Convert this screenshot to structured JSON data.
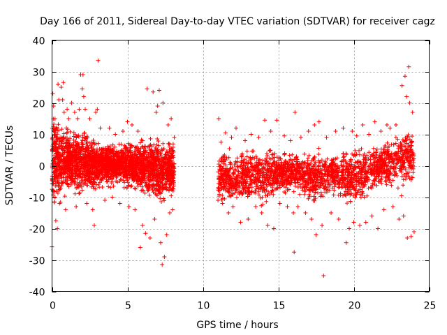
{
  "chart_data": {
    "type": "scatter",
    "title": "Day 166 of 2011, Sidereal Day-to-day VTEC variation (SDTVAR) for receiver cagz",
    "xlabel": "GPS time / hours",
    "ylabel": "SDTVAR / TECUs",
    "xlim": [
      0,
      25
    ],
    "ylim": [
      -40,
      40
    ],
    "xticks": [
      0,
      5,
      10,
      15,
      20,
      25
    ],
    "yticks": [
      -40,
      -30,
      -20,
      -10,
      0,
      10,
      20,
      30,
      40
    ],
    "grid": true,
    "marker": "plus",
    "color": "#ff0000",
    "series": [
      {
        "name": "SDTVAR",
        "points": [
          [
            0.0,
            -25.8
          ],
          [
            0.05,
            23.0
          ],
          [
            0.1,
            19.0
          ],
          [
            0.15,
            -11.5
          ],
          [
            0.2,
            15.0
          ],
          [
            0.25,
            -17.5
          ],
          [
            0.3,
            12.0
          ],
          [
            0.35,
            -20.0
          ],
          [
            0.4,
            26.0
          ],
          [
            0.45,
            21.0
          ],
          [
            0.5,
            -12.0
          ],
          [
            0.6,
            25.0
          ],
          [
            0.7,
            21.0
          ],
          [
            0.75,
            26.5
          ],
          [
            0.8,
            17.0
          ],
          [
            0.9,
            -14.0
          ],
          [
            1.0,
            18.0
          ],
          [
            1.1,
            15.0
          ],
          [
            1.3,
            20.0
          ],
          [
            1.5,
            17.0
          ],
          [
            1.6,
            -13.0
          ],
          [
            1.7,
            15.0
          ],
          [
            1.8,
            18.0
          ],
          [
            1.9,
            29.0
          ],
          [
            2.0,
            24.5
          ],
          [
            2.05,
            29.0
          ],
          [
            2.1,
            22.0
          ],
          [
            2.2,
            18.0
          ],
          [
            2.3,
            -12.0
          ],
          [
            2.5,
            15.0
          ],
          [
            2.7,
            -14.0
          ],
          [
            2.8,
            -19.0
          ],
          [
            2.9,
            17.0
          ],
          [
            3.0,
            18.0
          ],
          [
            3.05,
            33.5
          ],
          [
            3.2,
            12.0
          ],
          [
            3.5,
            -11.0
          ],
          [
            3.8,
            12.0
          ],
          [
            4.0,
            -10.0
          ],
          [
            4.2,
            10.0
          ],
          [
            4.5,
            -12.0
          ],
          [
            4.7,
            11.0
          ],
          [
            5.0,
            14.0
          ],
          [
            5.1,
            -13.0
          ],
          [
            5.3,
            13.0
          ],
          [
            5.5,
            -14.0
          ],
          [
            5.7,
            11.0
          ],
          [
            5.85,
            -26.0
          ],
          [
            6.0,
            -19.0
          ],
          [
            6.2,
            -21.5
          ],
          [
            6.3,
            24.5
          ],
          [
            6.5,
            -23.0
          ],
          [
            6.7,
            23.5
          ],
          [
            6.8,
            -17.0
          ],
          [
            6.9,
            17.0
          ],
          [
            7.0,
            19.0
          ],
          [
            7.1,
            24.0
          ],
          [
            7.2,
            -24.5
          ],
          [
            7.3,
            -31.5
          ],
          [
            7.35,
            20.0
          ],
          [
            7.45,
            -29.0
          ],
          [
            7.6,
            -22.0
          ],
          [
            7.7,
            13.0
          ],
          [
            7.8,
            -15.0
          ],
          [
            7.9,
            15.0
          ],
          [
            8.0,
            -14.0
          ],
          [
            8.1,
            9.0
          ],
          [
            11.0,
            -11.0
          ],
          [
            11.05,
            15.0
          ],
          [
            11.2,
            7.5
          ],
          [
            11.3,
            -12.0
          ],
          [
            11.5,
            10.5
          ],
          [
            11.7,
            -15.0
          ],
          [
            11.9,
            9.0
          ],
          [
            12.0,
            -13.0
          ],
          [
            12.2,
            12.0
          ],
          [
            12.5,
            -18.0
          ],
          [
            12.8,
            8.0
          ],
          [
            13.0,
            -17.0
          ],
          [
            13.2,
            10.0
          ],
          [
            13.5,
            -13.0
          ],
          [
            13.7,
            9.0
          ],
          [
            13.9,
            -15.0
          ],
          [
            14.1,
            14.5
          ],
          [
            14.3,
            -19.0
          ],
          [
            14.5,
            11.0
          ],
          [
            14.7,
            -20.0
          ],
          [
            14.9,
            14.5
          ],
          [
            15.1,
            -12.0
          ],
          [
            15.4,
            9.5
          ],
          [
            15.6,
            -13.0
          ],
          [
            15.8,
            8.0
          ],
          [
            16.0,
            -15.0
          ],
          [
            16.05,
            -27.5
          ],
          [
            16.1,
            17.0
          ],
          [
            16.3,
            -13.0
          ],
          [
            16.5,
            9.0
          ],
          [
            16.8,
            -15.0
          ],
          [
            17.0,
            11.0
          ],
          [
            17.2,
            -17.0
          ],
          [
            17.4,
            13.0
          ],
          [
            17.5,
            -22.0
          ],
          [
            17.7,
            14.0
          ],
          [
            17.9,
            -19.0
          ],
          [
            18.0,
            -35.0
          ],
          [
            18.2,
            9.0
          ],
          [
            18.5,
            -15.0
          ],
          [
            18.8,
            11.0
          ],
          [
            19.0,
            -17.0
          ],
          [
            19.3,
            12.0
          ],
          [
            19.5,
            -24.5
          ],
          [
            19.7,
            -20.0
          ],
          [
            19.9,
            11.0
          ],
          [
            20.0,
            -18.0
          ],
          [
            20.2,
            9.5
          ],
          [
            20.4,
            -19.0
          ],
          [
            20.6,
            13.0
          ],
          [
            20.8,
            -18.0
          ],
          [
            21.0,
            10.0
          ],
          [
            21.2,
            -16.0
          ],
          [
            21.4,
            14.0
          ],
          [
            21.6,
            -20.0
          ],
          [
            21.8,
            11.0
          ],
          [
            22.0,
            -14.0
          ],
          [
            22.2,
            13.0
          ],
          [
            22.4,
            12.0
          ],
          [
            22.6,
            -13.0
          ],
          [
            22.8,
            13.0
          ],
          [
            23.0,
            -17.0
          ],
          [
            23.2,
            25.5
          ],
          [
            23.3,
            -16.0
          ],
          [
            23.4,
            28.5
          ],
          [
            23.5,
            22.0
          ],
          [
            23.55,
            -23.0
          ],
          [
            23.65,
            31.5
          ],
          [
            23.7,
            20.0
          ],
          [
            23.8,
            -22.5
          ],
          [
            23.9,
            17.0
          ],
          [
            24.0,
            -21.0
          ]
        ]
      }
    ],
    "envelope": {
      "description": "dense band of points; upper/lower extents of the bulk of the data per hour",
      "segments": [
        {
          "x": [
            0,
            0.5,
            1,
            1.5,
            2,
            2.5,
            3,
            3.5,
            4,
            4.5,
            5,
            5.5,
            6,
            6.5,
            7,
            7.5,
            8.1
          ],
          "upper": [
            16,
            13,
            12,
            12,
            13,
            10,
            8,
            7,
            7,
            7,
            8,
            7,
            9,
            9,
            9,
            8,
            7
          ],
          "lower": [
            -15,
            -12,
            -10,
            -9,
            -9,
            -8,
            -8,
            -7,
            -7,
            -7,
            -8,
            -9,
            -10,
            -11,
            -13,
            -13,
            -11
          ],
          "center": [
            1.5,
            1.5,
            1.5,
            1.5,
            1.5,
            1.0,
            0.5,
            0.5,
            0.5,
            0.5,
            0.5,
            0.0,
            0.0,
            -0.5,
            -1.0,
            -1.5,
            -1.0
          ]
        },
        {
          "x": [
            11,
            11.5,
            12,
            12.5,
            13,
            13.5,
            14,
            14.5,
            15,
            15.5,
            16,
            16.5,
            17,
            17.5,
            18,
            18.5,
            19,
            19.5,
            20,
            20.5,
            21,
            21.5,
            22,
            22.5,
            23,
            23.5,
            24
          ],
          "upper": [
            7,
            6,
            5,
            5,
            6,
            6,
            7,
            6,
            5,
            5,
            4,
            5,
            6,
            6,
            5,
            4,
            5,
            6,
            5,
            6,
            5,
            6,
            7,
            8,
            10,
            11,
            9
          ],
          "lower": [
            -11,
            -11,
            -11,
            -12,
            -12,
            -12,
            -13,
            -12,
            -10,
            -9,
            -9,
            -10,
            -11,
            -13,
            -11,
            -9,
            -10,
            -13,
            -14,
            -13,
            -11,
            -10,
            -9,
            -9,
            -10,
            -11,
            -10
          ],
          "center": [
            -3.5,
            -3.5,
            -4.0,
            -3.5,
            -3.0,
            -3.0,
            -3.5,
            -3.0,
            -2.5,
            -2.0,
            -2.0,
            -2.5,
            -3.0,
            -3.5,
            -3.0,
            -2.5,
            -2.5,
            -3.5,
            -4.0,
            -3.0,
            -2.0,
            -1.0,
            0.0,
            1.0,
            2.0,
            3.0,
            3.0
          ]
        }
      ]
    }
  }
}
